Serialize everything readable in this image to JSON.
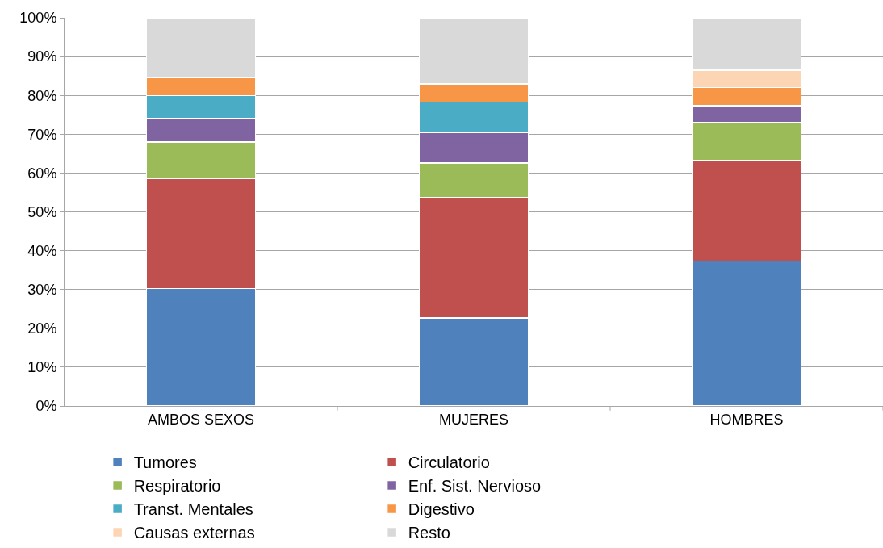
{
  "chart_data": {
    "type": "bar",
    "stacked": true,
    "categories": [
      "AMBOS SEXOS",
      "MUJERES",
      "HOMBRES"
    ],
    "series": [
      {
        "name": "Tumores",
        "color": "#4f81bd",
        "values": [
          30.2,
          22.7,
          37.3
        ]
      },
      {
        "name": "Circulatorio",
        "color": "#c0504d",
        "values": [
          28.4,
          31.0,
          25.9
        ]
      },
      {
        "name": "Respiratorio",
        "color": "#9bbb59",
        "values": [
          9.4,
          8.9,
          9.8
        ]
      },
      {
        "name": "Enf. Sist. Nervioso",
        "color": "#8064a2",
        "values": [
          6.1,
          7.9,
          4.3
        ]
      },
      {
        "name": "Transt. Mentales",
        "color": "#4bacc6",
        "values": [
          5.8,
          7.8,
          0
        ]
      },
      {
        "name": "Digestivo",
        "color": "#f79646",
        "values": [
          4.7,
          4.7,
          4.7
        ]
      },
      {
        "name": "Causas externas",
        "color": "#fcd5b5",
        "values": [
          0,
          0,
          4.5
        ]
      },
      {
        "name": "Resto",
        "color": "#d9d9d9",
        "values": [
          15.4,
          17.0,
          13.5
        ]
      }
    ],
    "ylim": [
      0,
      100
    ],
    "yticks": [
      {
        "value": 0,
        "label": "0%"
      },
      {
        "value": 10,
        "label": "10%"
      },
      {
        "value": 20,
        "label": "20%"
      },
      {
        "value": 30,
        "label": "30%"
      },
      {
        "value": 40,
        "label": "40%"
      },
      {
        "value": 50,
        "label": "50%"
      },
      {
        "value": 60,
        "label": "60%"
      },
      {
        "value": 70,
        "label": "70%"
      },
      {
        "value": 80,
        "label": "80%"
      },
      {
        "value": 90,
        "label": "90%"
      },
      {
        "value": 100,
        "label": "100%"
      }
    ],
    "grid": "y",
    "legend": "bottom"
  }
}
